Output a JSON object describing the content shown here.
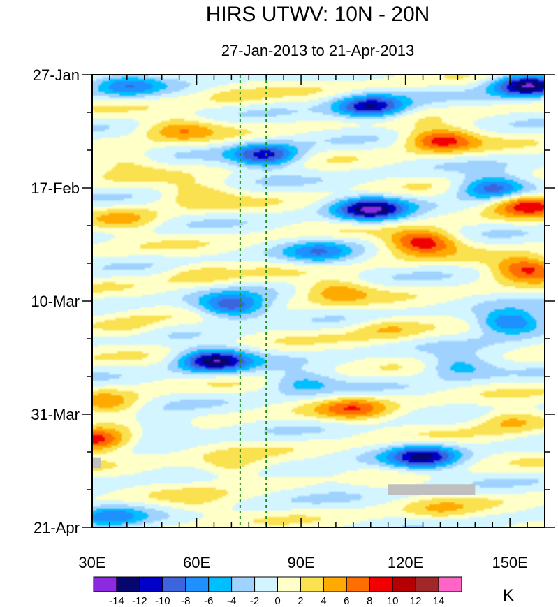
{
  "chart_data": {
    "type": "heatmap",
    "title": "HIRS UTWV: 10N - 20N",
    "subtitle": "27-Jan-2013 to 21-Apr-2013",
    "x_axis": {
      "range": [
        30,
        160
      ],
      "ticks": [
        {
          "value": 30,
          "label": "30E"
        },
        {
          "value": 60,
          "label": "60E"
        },
        {
          "value": 90,
          "label": "90E"
        },
        {
          "value": 120,
          "label": "120E"
        },
        {
          "value": 150,
          "label": "150E"
        }
      ]
    },
    "y_axis": {
      "range_days": [
        0,
        84
      ],
      "ticks": [
        {
          "day": 0,
          "label": "27-Jan"
        },
        {
          "day": 21,
          "label": "17-Feb"
        },
        {
          "day": 42,
          "label": "10-Mar"
        },
        {
          "day": 63,
          "label": "31-Mar"
        },
        {
          "day": 84,
          "label": "21-Apr"
        }
      ]
    },
    "reference_lines_lon": [
      72.5,
      80
    ],
    "missing_data_regions": [
      {
        "lon": [
          30,
          32.5
        ],
        "day": [
          71,
          73
        ]
      },
      {
        "lon": [
          115,
          140
        ],
        "day": [
          76,
          78
        ]
      }
    ],
    "colorbar": {
      "units": "K",
      "levels": [
        -14,
        -12,
        -10,
        -8,
        -6,
        -4,
        -2,
        0,
        2,
        4,
        6,
        8,
        10,
        12,
        14
      ],
      "tick_labels": [
        "-14",
        "-12",
        "-10",
        "-8",
        "-6",
        "-4",
        "-2",
        "0",
        "2",
        "4",
        "6",
        "8",
        "10",
        "12",
        "14"
      ],
      "colors": [
        "#8a2be2",
        "#06066e",
        "#0000c8",
        "#3c64dc",
        "#1e90ff",
        "#00bfff",
        "#a0d2ff",
        "#d2f5ff",
        "#ffffc8",
        "#fae150",
        "#ffaa00",
        "#ff6e00",
        "#f00000",
        "#b40000",
        "#a02828",
        "#ff64c8"
      ]
    },
    "anomaly_features": [
      {
        "lon": 40,
        "day": 2,
        "value": -6
      },
      {
        "lon": 155,
        "day": 2,
        "value": -14
      },
      {
        "lon": 70,
        "day": 4,
        "value": 2
      },
      {
        "lon": 110,
        "day": 6,
        "value": -12
      },
      {
        "lon": 55,
        "day": 10,
        "value": 5
      },
      {
        "lon": 130,
        "day": 12,
        "value": 9
      },
      {
        "lon": 80,
        "day": 15,
        "value": -11
      },
      {
        "lon": 40,
        "day": 16,
        "value": 3
      },
      {
        "lon": 145,
        "day": 21,
        "value": -10
      },
      {
        "lon": 155,
        "day": 24,
        "value": 9
      },
      {
        "lon": 110,
        "day": 25,
        "value": -13
      },
      {
        "lon": 60,
        "day": 22,
        "value": 4
      },
      {
        "lon": 40,
        "day": 27,
        "value": 4
      },
      {
        "lon": 125,
        "day": 31,
        "value": 10
      },
      {
        "lon": 95,
        "day": 33,
        "value": -6
      },
      {
        "lon": 155,
        "day": 36,
        "value": 9
      },
      {
        "lon": 60,
        "day": 37,
        "value": 3
      },
      {
        "lon": 100,
        "day": 40,
        "value": 5
      },
      {
        "lon": 70,
        "day": 43,
        "value": -10
      },
      {
        "lon": 150,
        "day": 46,
        "value": -10
      },
      {
        "lon": 40,
        "day": 47,
        "value": 3
      },
      {
        "lon": 115,
        "day": 47,
        "value": 4
      },
      {
        "lon": 65,
        "day": 53,
        "value": -13
      },
      {
        "lon": 135,
        "day": 54,
        "value": -6
      },
      {
        "lon": 90,
        "day": 57,
        "value": -5
      },
      {
        "lon": 35,
        "day": 61,
        "value": 5
      },
      {
        "lon": 105,
        "day": 62,
        "value": 6
      },
      {
        "lon": 150,
        "day": 64,
        "value": 5
      },
      {
        "lon": 50,
        "day": 65,
        "value": -4
      },
      {
        "lon": 31,
        "day": 68,
        "value": 10
      },
      {
        "lon": 125,
        "day": 71,
        "value": -11
      },
      {
        "lon": 70,
        "day": 73,
        "value": 4
      },
      {
        "lon": 100,
        "day": 75,
        "value": -2
      },
      {
        "lon": 60,
        "day": 80,
        "value": 2
      },
      {
        "lon": 35,
        "day": 82,
        "value": -6
      },
      {
        "lon": 130,
        "day": 81,
        "value": 3
      }
    ]
  }
}
